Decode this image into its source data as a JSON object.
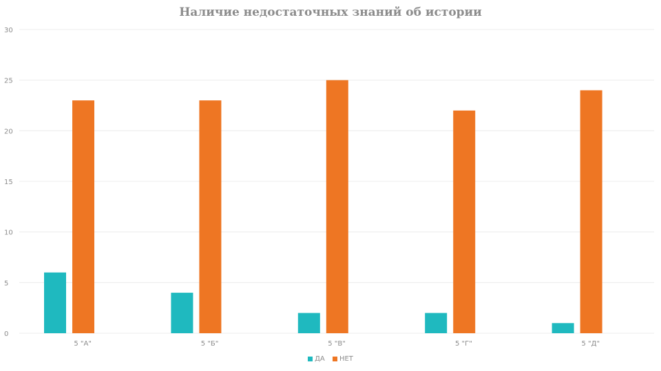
{
  "chart_data": {
    "type": "bar",
    "title": "Наличие недостаточных знаний об истории",
    "categories": [
      "5 \"А\"",
      "5 \"Б\"",
      "5 \"В\"",
      "5 \"Г\"",
      "5 \"Д\""
    ],
    "series": [
      {
        "name": "ДА",
        "color": "#1fb9bf",
        "values": [
          6,
          4,
          2,
          2,
          1
        ]
      },
      {
        "name": "НЕТ",
        "color": "#ee7623",
        "values": [
          23,
          23,
          25,
          22,
          24
        ]
      }
    ],
    "y_ticks": [
      "0",
      "5",
      "10",
      "15",
      "20",
      "25",
      "30"
    ],
    "ylim": [
      0,
      30
    ],
    "grid": true,
    "legend_position": "bottom"
  }
}
